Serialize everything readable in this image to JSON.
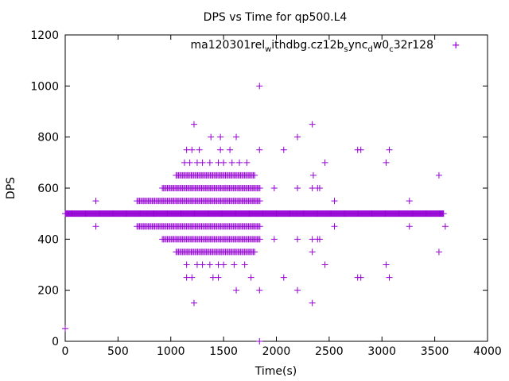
{
  "chart_data": {
    "type": "scatter",
    "title": "DPS vs Time for qp500.L4",
    "xlabel": "Time(s)",
    "ylabel": "DPS",
    "xlim": [
      0,
      4000
    ],
    "ylim": [
      0,
      1200
    ],
    "xticks": [
      0,
      500,
      1000,
      1500,
      2000,
      2500,
      3000,
      3500,
      4000
    ],
    "yticks": [
      0,
      200,
      400,
      600,
      800,
      1000,
      1200
    ],
    "grid": false,
    "legend_position": "top-right",
    "legend": {
      "base": "ma120301",
      "parts": [
        {
          "t": "rel",
          "sub": "w"
        },
        {
          "t": "ithdbg.cz12b",
          "sub": "s"
        },
        {
          "t": "ync",
          "sub": "d"
        },
        {
          "t": "w0",
          "sub": "c"
        },
        {
          "t": "32r128",
          "sub": ""
        }
      ]
    },
    "series": [
      {
        "color": "#9400d3",
        "marker": "plus",
        "baseline": {
          "y": 500,
          "x_start": 0,
          "x_end": 3590
        },
        "bands": [
          {
            "y": 450,
            "x": [
              680,
              1850
            ]
          },
          {
            "y": 550,
            "x": [
              680,
              1850
            ]
          },
          {
            "y": 400,
            "x": [
              920,
              1850
            ]
          },
          {
            "y": 600,
            "x": [
              920,
              1850
            ]
          },
          {
            "y": 350,
            "x": [
              1050,
              1800
            ]
          },
          {
            "y": 650,
            "x": [
              1050,
              1800
            ]
          }
        ],
        "points": [
          [
            0,
            50
          ],
          [
            290,
            450
          ],
          [
            290,
            550
          ],
          [
            1220,
            150
          ],
          [
            1220,
            850
          ],
          [
            1840,
            1000
          ],
          [
            1840,
            0
          ],
          [
            1620,
            200
          ],
          [
            1840,
            200
          ],
          [
            2200,
            200
          ],
          [
            2340,
            150
          ],
          [
            2340,
            850
          ],
          [
            1380,
            800
          ],
          [
            1470,
            800
          ],
          [
            1620,
            800
          ],
          [
            2200,
            800
          ],
          [
            1150,
            750
          ],
          [
            1200,
            750
          ],
          [
            1270,
            750
          ],
          [
            1470,
            750
          ],
          [
            1560,
            750
          ],
          [
            1840,
            750
          ],
          [
            2070,
            750
          ],
          [
            2770,
            750
          ],
          [
            2800,
            750
          ],
          [
            3070,
            750
          ],
          [
            1130,
            700
          ],
          [
            1180,
            700
          ],
          [
            1250,
            700
          ],
          [
            1300,
            700
          ],
          [
            1370,
            700
          ],
          [
            1450,
            700
          ],
          [
            1500,
            700
          ],
          [
            1580,
            700
          ],
          [
            1650,
            700
          ],
          [
            1720,
            700
          ],
          [
            2460,
            700
          ],
          [
            3040,
            700
          ],
          [
            2350,
            650
          ],
          [
            3540,
            650
          ],
          [
            3260,
            550
          ],
          [
            3260,
            450
          ],
          [
            1150,
            300
          ],
          [
            1250,
            300
          ],
          [
            1300,
            300
          ],
          [
            1370,
            300
          ],
          [
            1450,
            300
          ],
          [
            1500,
            300
          ],
          [
            1600,
            300
          ],
          [
            1700,
            300
          ],
          [
            2460,
            300
          ],
          [
            3040,
            300
          ],
          [
            1150,
            250
          ],
          [
            1200,
            250
          ],
          [
            1400,
            250
          ],
          [
            1450,
            250
          ],
          [
            1760,
            250
          ],
          [
            2070,
            250
          ],
          [
            2770,
            250
          ],
          [
            2800,
            250
          ],
          [
            3070,
            250
          ],
          [
            1980,
            600
          ],
          [
            1980,
            400
          ],
          [
            2200,
            600
          ],
          [
            2200,
            400
          ],
          [
            2340,
            600
          ],
          [
            2340,
            400
          ],
          [
            2390,
            600
          ],
          [
            2390,
            400
          ],
          [
            2410,
            600
          ],
          [
            2410,
            400
          ],
          [
            2340,
            350
          ],
          [
            2550,
            450
          ],
          [
            2550,
            550
          ],
          [
            3540,
            350
          ],
          [
            3600,
            450
          ],
          [
            3700,
            1160
          ]
        ]
      }
    ]
  }
}
